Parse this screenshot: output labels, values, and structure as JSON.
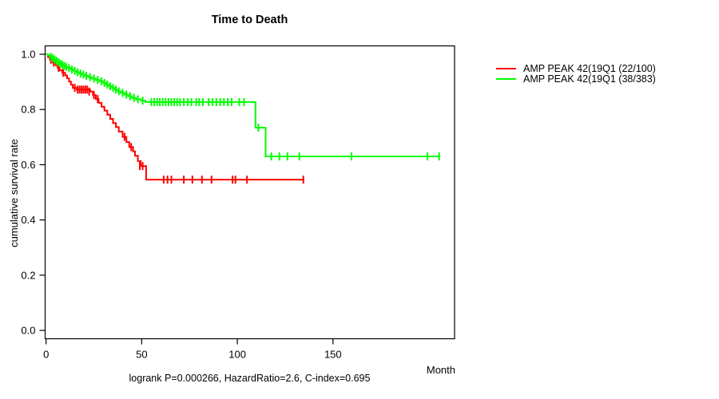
{
  "chart_data": {
    "type": "line",
    "subtype": "kaplan-meier-step",
    "title": "Time to Death",
    "xlabel": "Month",
    "ylabel": "cumulative survival rate",
    "annotation": "logrank P=0.000266, HazardRatio=2.6, C-index=0.695",
    "xlim": [
      0,
      213
    ],
    "ylim": [
      0,
      1
    ],
    "xticks": [
      0,
      50,
      100,
      150
    ],
    "yticks": [
      "0.0",
      "0.2",
      "0.4",
      "0.6",
      "0.8",
      "1.0"
    ],
    "grid": false,
    "legend_position": "right-outside",
    "axis_color": "#000000",
    "background_color": "#ffffff",
    "series": [
      {
        "name": "AMP PEAK 42(19Q1 (22/100)",
        "color": "#ff0000",
        "end_month": 135,
        "steps": [
          [
            0,
            1.0
          ],
          [
            1,
            0.99
          ],
          [
            2,
            0.98
          ],
          [
            3.5,
            0.97
          ],
          [
            5,
            0.96
          ],
          [
            6,
            0.951
          ],
          [
            7,
            0.942
          ],
          [
            8.5,
            0.933
          ],
          [
            10,
            0.923
          ],
          [
            11,
            0.913
          ],
          [
            12,
            0.901
          ],
          [
            13,
            0.89
          ],
          [
            14,
            0.878
          ],
          [
            16,
            0.872
          ],
          [
            23,
            0.865
          ],
          [
            24.5,
            0.852
          ],
          [
            26,
            0.838
          ],
          [
            27.5,
            0.824
          ],
          [
            29,
            0.81
          ],
          [
            30.5,
            0.796
          ],
          [
            32,
            0.781
          ],
          [
            33.5,
            0.766
          ],
          [
            35,
            0.751
          ],
          [
            36.5,
            0.736
          ],
          [
            38,
            0.72
          ],
          [
            40,
            0.701
          ],
          [
            42,
            0.682
          ],
          [
            43.5,
            0.664
          ],
          [
            45.5,
            0.648
          ],
          [
            46.5,
            0.632
          ],
          [
            48,
            0.613
          ],
          [
            49.5,
            0.595
          ],
          [
            52.3,
            0.546
          ]
        ],
        "censors": [
          [
            2.5,
            0.98
          ],
          [
            4,
            0.97
          ],
          [
            6.5,
            0.951
          ],
          [
            9,
            0.933
          ],
          [
            15,
            0.878
          ],
          [
            16.5,
            0.872
          ],
          [
            17.5,
            0.872
          ],
          [
            18.5,
            0.872
          ],
          [
            19.5,
            0.872
          ],
          [
            20.5,
            0.872
          ],
          [
            21.5,
            0.872
          ],
          [
            22.5,
            0.865
          ],
          [
            25,
            0.852
          ],
          [
            27,
            0.838
          ],
          [
            41,
            0.701
          ],
          [
            44.5,
            0.664
          ],
          [
            49,
            0.595
          ],
          [
            50.5,
            0.595
          ],
          [
            61.5,
            0.546
          ],
          [
            63.5,
            0.546
          ],
          [
            65.5,
            0.546
          ],
          [
            72,
            0.546
          ],
          [
            76.5,
            0.546
          ],
          [
            81.5,
            0.546
          ],
          [
            86.5,
            0.546
          ],
          [
            97.5,
            0.546
          ],
          [
            99,
            0.546
          ],
          [
            105,
            0.546
          ],
          [
            134.5,
            0.546
          ]
        ]
      },
      {
        "name": "AMP PEAK 42(19Q1 (38/383)",
        "color": "#00ff00",
        "end_month": 205.6,
        "steps": [
          [
            0,
            1.0
          ],
          [
            1,
            0.996
          ],
          [
            2,
            0.991
          ],
          [
            3,
            0.986
          ],
          [
            4,
            0.981
          ],
          [
            5,
            0.976
          ],
          [
            6,
            0.971
          ],
          [
            7,
            0.966
          ],
          [
            8,
            0.962
          ],
          [
            9,
            0.958
          ],
          [
            10,
            0.954
          ],
          [
            11.5,
            0.95
          ],
          [
            13,
            0.945
          ],
          [
            14.5,
            0.94
          ],
          [
            16,
            0.935
          ],
          [
            17.5,
            0.93
          ],
          [
            19,
            0.926
          ],
          [
            20.5,
            0.922
          ],
          [
            22,
            0.917
          ],
          [
            24,
            0.912
          ],
          [
            26,
            0.907
          ],
          [
            28,
            0.902
          ],
          [
            30,
            0.896
          ],
          [
            31.5,
            0.89
          ],
          [
            33,
            0.884
          ],
          [
            34.5,
            0.878
          ],
          [
            36,
            0.872
          ],
          [
            37.5,
            0.866
          ],
          [
            39,
            0.86
          ],
          [
            41,
            0.854
          ],
          [
            43,
            0.848
          ],
          [
            45,
            0.842
          ],
          [
            47,
            0.837
          ],
          [
            49.5,
            0.832
          ],
          [
            52,
            0.827
          ],
          [
            109.5,
            0.734
          ],
          [
            114.8,
            0.63
          ]
        ],
        "censors": [
          [
            2.5,
            0.991
          ],
          [
            3.5,
            0.986
          ],
          [
            4.5,
            0.981
          ],
          [
            5.5,
            0.976
          ],
          [
            6.5,
            0.971
          ],
          [
            7.5,
            0.966
          ],
          [
            8.5,
            0.962
          ],
          [
            9.5,
            0.958
          ],
          [
            10.5,
            0.954
          ],
          [
            12,
            0.95
          ],
          [
            13.5,
            0.945
          ],
          [
            15,
            0.94
          ],
          [
            16.5,
            0.935
          ],
          [
            18,
            0.93
          ],
          [
            19.5,
            0.926
          ],
          [
            21,
            0.922
          ],
          [
            23,
            0.917
          ],
          [
            25,
            0.912
          ],
          [
            27,
            0.907
          ],
          [
            29,
            0.902
          ],
          [
            30.5,
            0.896
          ],
          [
            32,
            0.89
          ],
          [
            33.5,
            0.884
          ],
          [
            35,
            0.878
          ],
          [
            36.5,
            0.872
          ],
          [
            38,
            0.866
          ],
          [
            40,
            0.86
          ],
          [
            42,
            0.854
          ],
          [
            44,
            0.848
          ],
          [
            46,
            0.842
          ],
          [
            48,
            0.837
          ],
          [
            50.5,
            0.832
          ],
          [
            55,
            0.827
          ],
          [
            56.5,
            0.827
          ],
          [
            58,
            0.827
          ],
          [
            59.5,
            0.827
          ],
          [
            61,
            0.827
          ],
          [
            62.5,
            0.827
          ],
          [
            64,
            0.827
          ],
          [
            65.5,
            0.827
          ],
          [
            67,
            0.827
          ],
          [
            68.5,
            0.827
          ],
          [
            70,
            0.827
          ],
          [
            72,
            0.827
          ],
          [
            74,
            0.827
          ],
          [
            76,
            0.827
          ],
          [
            78.5,
            0.827
          ],
          [
            80,
            0.827
          ],
          [
            82,
            0.827
          ],
          [
            85,
            0.827
          ],
          [
            87,
            0.827
          ],
          [
            89,
            0.827
          ],
          [
            91,
            0.827
          ],
          [
            93,
            0.827
          ],
          [
            95,
            0.827
          ],
          [
            97,
            0.827
          ],
          [
            101,
            0.827
          ],
          [
            103.5,
            0.827
          ],
          [
            111,
            0.734
          ],
          [
            117.8,
            0.63
          ],
          [
            122,
            0.63
          ],
          [
            126.2,
            0.63
          ],
          [
            132.4,
            0.63
          ],
          [
            159.7,
            0.63
          ],
          [
            199.4,
            0.63
          ],
          [
            205.5,
            0.63
          ]
        ]
      }
    ]
  }
}
